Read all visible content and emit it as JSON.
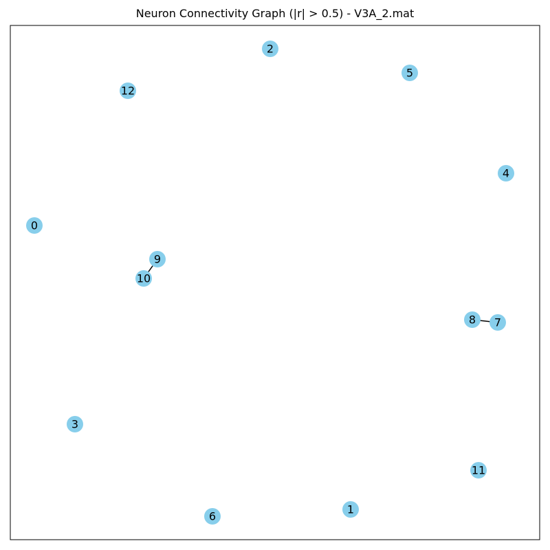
{
  "title": "Neuron Connectivity Graph (|r| > 0.5) - V3A_2.mat",
  "colors": {
    "node": "#87ceeb",
    "edge": "#000000",
    "frame": "#000000"
  },
  "graph": {
    "nodes": [
      {
        "id": "0",
        "label": "0"
      },
      {
        "id": "1",
        "label": "1"
      },
      {
        "id": "2",
        "label": "2"
      },
      {
        "id": "3",
        "label": "3"
      },
      {
        "id": "4",
        "label": "4"
      },
      {
        "id": "5",
        "label": "5"
      },
      {
        "id": "6",
        "label": "6"
      },
      {
        "id": "7",
        "label": "7"
      },
      {
        "id": "8",
        "label": "8"
      },
      {
        "id": "9",
        "label": "9"
      },
      {
        "id": "10",
        "label": "10"
      },
      {
        "id": "11",
        "label": "11"
      },
      {
        "id": "12",
        "label": "12"
      }
    ],
    "edges": [
      {
        "source": "9",
        "target": "10"
      },
      {
        "source": "8",
        "target": "7"
      }
    ]
  }
}
